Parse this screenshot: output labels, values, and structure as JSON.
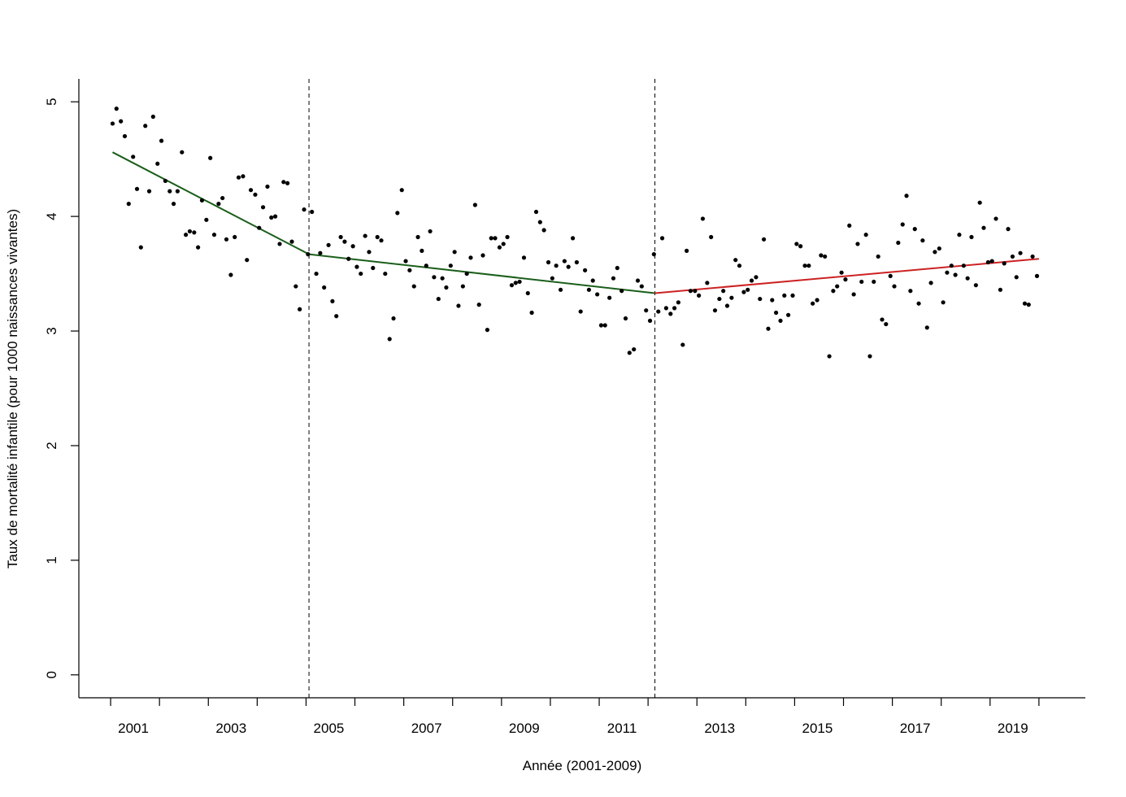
{
  "chart_data": {
    "type": "scatter",
    "title": "",
    "xlabel": "Année (2001-2009)",
    "ylabel": "Taux de mortalité infantile (pour 1000 naissances vivantes)",
    "xlim": [
      2000.35,
      2020.95
    ],
    "ylim": [
      -0.2,
      5.2
    ],
    "x_ticks": [
      2001,
      2002,
      2003,
      2004,
      2005,
      2006,
      2007,
      2008,
      2009,
      2010,
      2011,
      2012,
      2013,
      2014,
      2015,
      2016,
      2017,
      2018,
      2019,
      2020
    ],
    "x_tick_labels": [
      "2001",
      "",
      "2003",
      "",
      "2005",
      "",
      "2007",
      "",
      "2009",
      "",
      "2011",
      "",
      "2013",
      "",
      "2015",
      "",
      "2017",
      "",
      "2019",
      ""
    ],
    "y_ticks": [
      0,
      1,
      2,
      3,
      4,
      5
    ],
    "y_tick_labels": [
      "0",
      "1",
      "2",
      "3",
      "4",
      "5"
    ],
    "grid": false,
    "breakpoints": [
      2005.06,
      2012.14
    ],
    "segments": [
      {
        "color": "#1a5e1a",
        "points": [
          [
            2001.04,
            4.56
          ],
          [
            2005.06,
            3.67
          ]
        ]
      },
      {
        "color": "#1a5e1a",
        "points": [
          [
            2005.06,
            3.67
          ],
          [
            2012.14,
            3.33
          ]
        ]
      },
      {
        "color": "#cc2222",
        "points": [
          [
            2012.14,
            3.33
          ],
          [
            2020.0,
            3.63
          ]
        ]
      }
    ],
    "points": [
      [
        2001.04,
        4.81
      ],
      [
        2001.12,
        4.94
      ],
      [
        2001.21,
        4.83
      ],
      [
        2001.29,
        4.7
      ],
      [
        2001.37,
        4.11
      ],
      [
        2001.46,
        4.52
      ],
      [
        2001.54,
        4.24
      ],
      [
        2001.62,
        3.73
      ],
      [
        2001.71,
        4.79
      ],
      [
        2001.79,
        4.22
      ],
      [
        2001.87,
        4.87
      ],
      [
        2001.96,
        4.46
      ],
      [
        2002.04,
        4.66
      ],
      [
        2002.12,
        4.31
      ],
      [
        2002.21,
        4.22
      ],
      [
        2002.29,
        4.11
      ],
      [
        2002.37,
        4.22
      ],
      [
        2002.46,
        4.56
      ],
      [
        2002.54,
        3.84
      ],
      [
        2002.62,
        3.87
      ],
      [
        2002.71,
        3.86
      ],
      [
        2002.79,
        3.73
      ],
      [
        2002.87,
        4.14
      ],
      [
        2002.96,
        3.97
      ],
      [
        2003.04,
        4.51
      ],
      [
        2003.12,
        3.84
      ],
      [
        2003.21,
        4.11
      ],
      [
        2003.29,
        4.16
      ],
      [
        2003.37,
        3.8
      ],
      [
        2003.46,
        3.49
      ],
      [
        2003.54,
        3.82
      ],
      [
        2003.62,
        4.34
      ],
      [
        2003.71,
        4.35
      ],
      [
        2003.79,
        3.62
      ],
      [
        2003.87,
        4.23
      ],
      [
        2003.96,
        4.19
      ],
      [
        2004.04,
        3.9
      ],
      [
        2004.12,
        4.08
      ],
      [
        2004.21,
        4.26
      ],
      [
        2004.29,
        3.99
      ],
      [
        2004.37,
        4.0
      ],
      [
        2004.46,
        3.76
      ],
      [
        2004.54,
        4.3
      ],
      [
        2004.62,
        4.29
      ],
      [
        2004.71,
        3.78
      ],
      [
        2004.79,
        3.39
      ],
      [
        2004.87,
        3.19
      ],
      [
        2004.96,
        4.06
      ],
      [
        2005.04,
        3.67
      ],
      [
        2005.12,
        4.04
      ],
      [
        2005.21,
        3.5
      ],
      [
        2005.29,
        3.68
      ],
      [
        2005.37,
        3.38
      ],
      [
        2005.46,
        3.75
      ],
      [
        2005.54,
        3.26
      ],
      [
        2005.62,
        3.13
      ],
      [
        2005.71,
        3.82
      ],
      [
        2005.79,
        3.78
      ],
      [
        2005.87,
        3.63
      ],
      [
        2005.96,
        3.74
      ],
      [
        2006.04,
        3.56
      ],
      [
        2006.12,
        3.5
      ],
      [
        2006.21,
        3.83
      ],
      [
        2006.29,
        3.69
      ],
      [
        2006.37,
        3.55
      ],
      [
        2006.46,
        3.82
      ],
      [
        2006.54,
        3.79
      ],
      [
        2006.62,
        3.5
      ],
      [
        2006.71,
        2.93
      ],
      [
        2006.79,
        3.11
      ],
      [
        2006.87,
        4.03
      ],
      [
        2006.96,
        4.23
      ],
      [
        2007.04,
        3.61
      ],
      [
        2007.12,
        3.53
      ],
      [
        2007.21,
        3.39
      ],
      [
        2007.29,
        3.82
      ],
      [
        2007.37,
        3.7
      ],
      [
        2007.46,
        3.57
      ],
      [
        2007.54,
        3.87
      ],
      [
        2007.62,
        3.47
      ],
      [
        2007.71,
        3.28
      ],
      [
        2007.79,
        3.46
      ],
      [
        2007.87,
        3.38
      ],
      [
        2007.96,
        3.57
      ],
      [
        2008.04,
        3.69
      ],
      [
        2008.12,
        3.22
      ],
      [
        2008.21,
        3.39
      ],
      [
        2008.29,
        3.5
      ],
      [
        2008.37,
        3.64
      ],
      [
        2008.46,
        4.1
      ],
      [
        2008.54,
        3.23
      ],
      [
        2008.62,
        3.66
      ],
      [
        2008.71,
        3.01
      ],
      [
        2008.79,
        3.81
      ],
      [
        2008.87,
        3.81
      ],
      [
        2008.96,
        3.73
      ],
      [
        2009.04,
        3.76
      ],
      [
        2009.12,
        3.82
      ],
      [
        2009.21,
        3.4
      ],
      [
        2009.29,
        3.42
      ],
      [
        2009.37,
        3.43
      ],
      [
        2009.46,
        3.64
      ],
      [
        2009.54,
        3.33
      ],
      [
        2009.62,
        3.16
      ],
      [
        2009.71,
        4.04
      ],
      [
        2009.79,
        3.95
      ],
      [
        2009.87,
        3.88
      ],
      [
        2009.96,
        3.6
      ],
      [
        2010.04,
        3.46
      ],
      [
        2010.12,
        3.57
      ],
      [
        2010.21,
        3.36
      ],
      [
        2010.29,
        3.61
      ],
      [
        2010.37,
        3.56
      ],
      [
        2010.46,
        3.81
      ],
      [
        2010.54,
        3.6
      ],
      [
        2010.62,
        3.17
      ],
      [
        2010.71,
        3.53
      ],
      [
        2010.79,
        3.36
      ],
      [
        2010.87,
        3.44
      ],
      [
        2010.96,
        3.32
      ],
      [
        2011.04,
        3.05
      ],
      [
        2011.12,
        3.05
      ],
      [
        2011.21,
        3.29
      ],
      [
        2011.29,
        3.46
      ],
      [
        2011.37,
        3.55
      ],
      [
        2011.46,
        3.35
      ],
      [
        2011.54,
        3.11
      ],
      [
        2011.62,
        2.81
      ],
      [
        2011.71,
        2.84
      ],
      [
        2011.79,
        3.44
      ],
      [
        2011.87,
        3.39
      ],
      [
        2011.96,
        3.18
      ],
      [
        2012.04,
        3.09
      ],
      [
        2012.12,
        3.67
      ],
      [
        2012.21,
        3.17
      ],
      [
        2012.29,
        3.81
      ],
      [
        2012.37,
        3.2
      ],
      [
        2012.46,
        3.15
      ],
      [
        2012.54,
        3.2
      ],
      [
        2012.62,
        3.25
      ],
      [
        2012.71,
        2.88
      ],
      [
        2012.79,
        3.7
      ],
      [
        2012.87,
        3.35
      ],
      [
        2012.96,
        3.35
      ],
      [
        2013.04,
        3.31
      ],
      [
        2013.12,
        3.98
      ],
      [
        2013.21,
        3.42
      ],
      [
        2013.29,
        3.82
      ],
      [
        2013.37,
        3.18
      ],
      [
        2013.46,
        3.28
      ],
      [
        2013.54,
        3.35
      ],
      [
        2013.62,
        3.22
      ],
      [
        2013.71,
        3.29
      ],
      [
        2013.79,
        3.62
      ],
      [
        2013.87,
        3.57
      ],
      [
        2013.96,
        3.34
      ],
      [
        2014.04,
        3.36
      ],
      [
        2014.12,
        3.44
      ],
      [
        2014.21,
        3.47
      ],
      [
        2014.29,
        3.28
      ],
      [
        2014.37,
        3.8
      ],
      [
        2014.46,
        3.02
      ],
      [
        2014.54,
        3.27
      ],
      [
        2014.62,
        3.16
      ],
      [
        2014.71,
        3.09
      ],
      [
        2014.79,
        3.31
      ],
      [
        2014.87,
        3.14
      ],
      [
        2014.96,
        3.31
      ],
      [
        2015.04,
        3.76
      ],
      [
        2015.12,
        3.74
      ],
      [
        2015.21,
        3.57
      ],
      [
        2015.29,
        3.57
      ],
      [
        2015.37,
        3.24
      ],
      [
        2015.46,
        3.27
      ],
      [
        2015.54,
        3.66
      ],
      [
        2015.62,
        3.65
      ],
      [
        2015.71,
        2.78
      ],
      [
        2015.79,
        3.35
      ],
      [
        2015.87,
        3.39
      ],
      [
        2015.96,
        3.51
      ],
      [
        2016.04,
        3.45
      ],
      [
        2016.12,
        3.92
      ],
      [
        2016.21,
        3.32
      ],
      [
        2016.29,
        3.76
      ],
      [
        2016.37,
        3.43
      ],
      [
        2016.46,
        3.84
      ],
      [
        2016.54,
        2.78
      ],
      [
        2016.62,
        3.43
      ],
      [
        2016.71,
        3.65
      ],
      [
        2016.79,
        3.1
      ],
      [
        2016.87,
        3.06
      ],
      [
        2016.96,
        3.48
      ],
      [
        2017.04,
        3.39
      ],
      [
        2017.12,
        3.77
      ],
      [
        2017.21,
        3.93
      ],
      [
        2017.29,
        4.18
      ],
      [
        2017.37,
        3.35
      ],
      [
        2017.46,
        3.89
      ],
      [
        2017.54,
        3.24
      ],
      [
        2017.62,
        3.79
      ],
      [
        2017.71,
        3.03
      ],
      [
        2017.79,
        3.42
      ],
      [
        2017.87,
        3.69
      ],
      [
        2017.96,
        3.72
      ],
      [
        2018.04,
        3.25
      ],
      [
        2018.12,
        3.51
      ],
      [
        2018.21,
        3.57
      ],
      [
        2018.29,
        3.49
      ],
      [
        2018.37,
        3.84
      ],
      [
        2018.46,
        3.57
      ],
      [
        2018.54,
        3.46
      ],
      [
        2018.62,
        3.82
      ],
      [
        2018.71,
        3.4
      ],
      [
        2018.79,
        4.12
      ],
      [
        2018.87,
        3.9
      ],
      [
        2018.96,
        3.6
      ],
      [
        2019.04,
        3.61
      ],
      [
        2019.12,
        3.98
      ],
      [
        2019.21,
        3.36
      ],
      [
        2019.29,
        3.59
      ],
      [
        2019.37,
        3.89
      ],
      [
        2019.46,
        3.65
      ],
      [
        2019.54,
        3.47
      ],
      [
        2019.62,
        3.68
      ],
      [
        2019.71,
        3.24
      ],
      [
        2019.79,
        3.23
      ],
      [
        2019.87,
        3.65
      ],
      [
        2019.96,
        3.48
      ]
    ]
  }
}
